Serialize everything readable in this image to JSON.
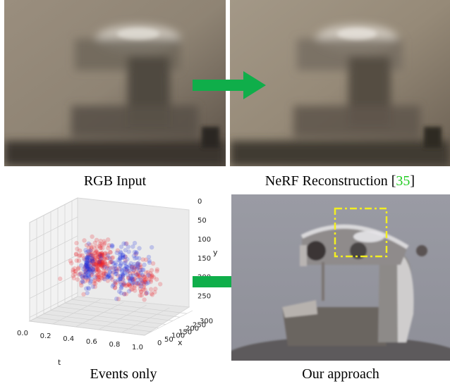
{
  "figure": {
    "panels": [
      {
        "id": "rgb-input",
        "caption": "RGB Input"
      },
      {
        "id": "nerf-reconstruction",
        "caption": "NeRF Reconstruction [",
        "citation": "35",
        "caption_suffix": "]"
      },
      {
        "id": "events-only",
        "caption": "Events only"
      },
      {
        "id": "our-approach",
        "caption": "Our approach"
      }
    ],
    "colors": {
      "arrow": "#0fae4a",
      "citation": "#22cc22",
      "highlight_box": "#f2ee22",
      "event_positive": "#e8202a",
      "event_negative": "#2030e0"
    }
  },
  "chart_data": {
    "type": "scatter",
    "projection": "3d",
    "xlabel": "x",
    "ylabel": "y",
    "tlabel": "t",
    "x_ticks": [
      0,
      50,
      100,
      150,
      200,
      250,
      300
    ],
    "y_ticks": [
      0,
      50,
      100,
      150,
      200,
      250
    ],
    "t_ticks": [
      "0.0",
      "0.2",
      "0.4",
      "0.6",
      "0.8",
      "1.0"
    ],
    "xlim": [
      0,
      340
    ],
    "ylim": [
      0,
      260
    ],
    "tlim": [
      0,
      1
    ],
    "grid": true,
    "series": [
      {
        "polarity": "positive",
        "color": "#e8202a",
        "clusters": [
          {
            "x": 120,
            "y": 110,
            "t": 0.45,
            "spread": [
              25,
              70,
              0.1
            ],
            "n": 90
          },
          {
            "x": 200,
            "y": 160,
            "t": 0.7,
            "spread": [
              60,
              70,
              0.25
            ],
            "n": 110
          },
          {
            "x": 170,
            "y": 120,
            "t": 0.35,
            "spread": [
              120,
              90,
              0.3
            ],
            "n": 140
          }
        ]
      },
      {
        "polarity": "negative",
        "color": "#2030e0",
        "clusters": [
          {
            "x": 90,
            "y": 120,
            "t": 0.4,
            "spread": [
              20,
              80,
              0.08
            ],
            "n": 80
          },
          {
            "x": 190,
            "y": 140,
            "t": 0.6,
            "spread": [
              110,
              90,
              0.3
            ],
            "n": 150
          }
        ]
      }
    ]
  }
}
